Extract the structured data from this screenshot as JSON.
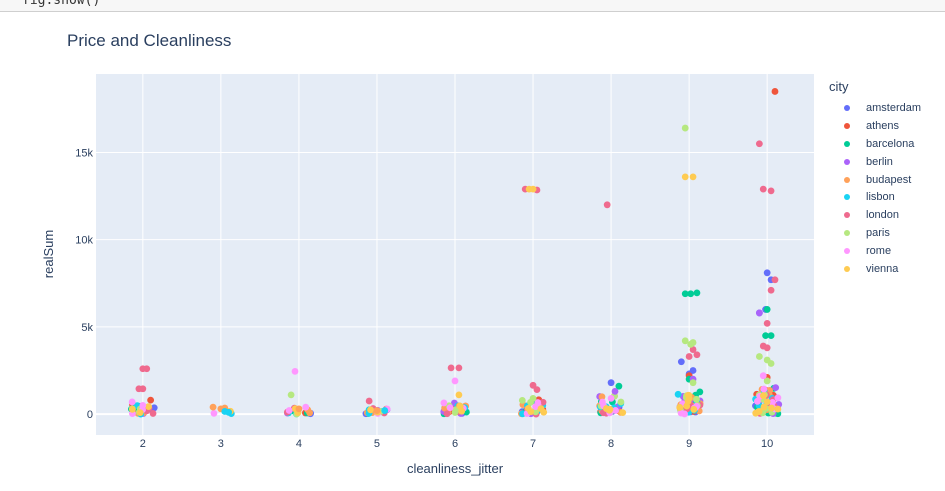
{
  "code_cell": {
    "text": "fig.show()"
  },
  "chart_data": {
    "type": "scatter",
    "title": "Price and Cleanliness",
    "xlabel": "cleanliness_jitter",
    "ylabel": "realSum",
    "xlim": [
      1.4,
      10.6
    ],
    "ylim": [
      -1200,
      19500
    ],
    "x_ticks": [
      2,
      3,
      4,
      5,
      6,
      7,
      8,
      9,
      10
    ],
    "y_ticks": [
      0,
      5000,
      10000,
      15000
    ],
    "y_tick_labels": [
      "0",
      "5k",
      "10k",
      "15k"
    ],
    "grid": true,
    "legend": {
      "title": "city",
      "position": "right"
    },
    "series": [
      {
        "name": "amsterdam",
        "color": "#636efa",
        "points": [
          [
            9.9,
            5800
          ],
          [
            9.98,
            6000
          ],
          [
            10.0,
            8100
          ],
          [
            10.05,
            7700
          ],
          [
            9.05,
            2500
          ],
          [
            8.0,
            1800
          ],
          [
            8.9,
            3000
          ],
          [
            9.0,
            2300
          ]
        ]
      },
      {
        "name": "athens",
        "color": "#ef553b",
        "points": [
          [
            10.1,
            18500
          ],
          [
            9.0,
            2200
          ],
          [
            10.0,
            2100
          ],
          [
            2.1,
            800
          ]
        ]
      },
      {
        "name": "barcelona",
        "color": "#00cc96",
        "points": [
          [
            8.95,
            6900
          ],
          [
            9.02,
            6900
          ],
          [
            9.1,
            6950
          ],
          [
            9.98,
            4500
          ],
          [
            10.05,
            4500
          ],
          [
            10.0,
            6000
          ],
          [
            8.1,
            1600
          ],
          [
            9.0,
            2000
          ]
        ]
      },
      {
        "name": "berlin",
        "color": "#ab63fa",
        "points": [
          [
            9.9,
            5800
          ],
          [
            9.05,
            2000
          ],
          [
            8.05,
            1300
          ]
        ]
      },
      {
        "name": "budapest",
        "color": "#ffa15a",
        "points": [
          [
            2.9,
            400
          ],
          [
            3.0,
            300
          ],
          [
            3.05,
            350
          ],
          [
            4.0,
            300
          ],
          [
            5.0,
            200
          ]
        ]
      },
      {
        "name": "lisbon",
        "color": "#19d3f3",
        "points": [
          [
            3.05,
            150
          ],
          [
            3.1,
            100
          ],
          [
            5.1,
            200
          ]
        ]
      },
      {
        "name": "london",
        "color": "#ef6a8e",
        "points": [
          [
            6.9,
            12900
          ],
          [
            7.05,
            12850
          ],
          [
            7.95,
            12000
          ],
          [
            9.9,
            15500
          ],
          [
            9.95,
            12900
          ],
          [
            10.05,
            12800
          ],
          [
            2.0,
            2600
          ],
          [
            2.05,
            2600
          ],
          [
            1.95,
            1450
          ],
          [
            2.0,
            1450
          ],
          [
            5.95,
            2650
          ],
          [
            6.05,
            2650
          ],
          [
            7.0,
            1650
          ],
          [
            7.05,
            1400
          ],
          [
            9.0,
            3300
          ],
          [
            9.05,
            3700
          ],
          [
            9.1,
            3400
          ],
          [
            10.0,
            5200
          ],
          [
            10.05,
            7100
          ],
          [
            10.1,
            7700
          ],
          [
            9.95,
            3900
          ],
          [
            10.0,
            3800
          ],
          [
            4.9,
            750
          ]
        ]
      },
      {
        "name": "paris",
        "color": "#b6e880",
        "points": [
          [
            8.95,
            16400
          ],
          [
            8.95,
            4200
          ],
          [
            9.02,
            4000
          ],
          [
            9.05,
            4100
          ],
          [
            9.9,
            3300
          ],
          [
            10.0,
            3100
          ],
          [
            10.05,
            2900
          ],
          [
            3.9,
            1100
          ],
          [
            7.0,
            900
          ],
          [
            9.05,
            1800
          ],
          [
            10.0,
            1900
          ]
        ]
      },
      {
        "name": "rome",
        "color": "#ff97ff",
        "points": [
          [
            3.95,
            2450
          ],
          [
            6.0,
            1900
          ],
          [
            9.95,
            2200
          ],
          [
            2.0,
            500
          ],
          [
            8.0,
            900
          ]
        ]
      },
      {
        "name": "vienna",
        "color": "#fecb52",
        "points": [
          [
            8.95,
            13600
          ],
          [
            9.05,
            13600
          ],
          [
            6.95,
            12900
          ],
          [
            7.0,
            12900
          ],
          [
            6.05,
            1100
          ],
          [
            9.0,
            900
          ],
          [
            10.0,
            700
          ]
        ]
      }
    ]
  }
}
